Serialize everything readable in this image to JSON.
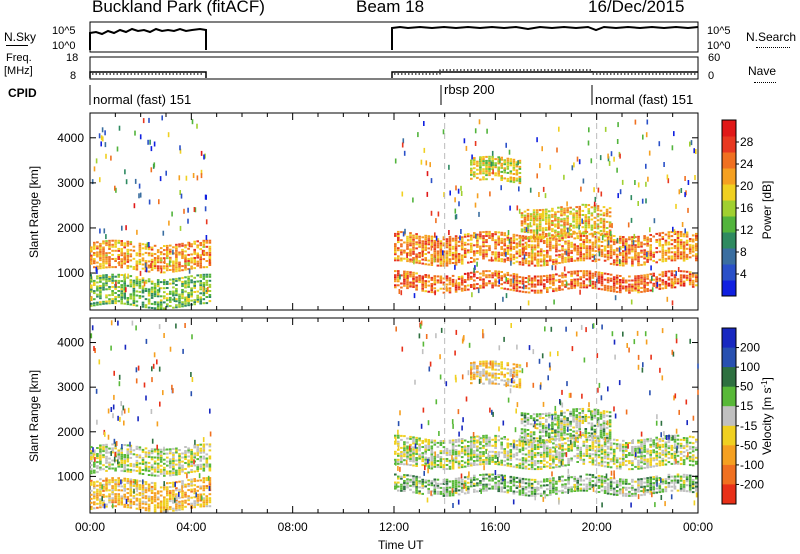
{
  "header": {
    "station": "Buckland Park (fitACF)",
    "beam": "Beam 18",
    "date": "16/Dec/2015"
  },
  "side_labels": {
    "nsky": "N.Sky",
    "nsky_ticks": [
      "10^5",
      "10^0"
    ],
    "nsearch": "N.Search",
    "nsearch_ticks": [
      "10^5",
      "10^0"
    ],
    "freq_line1": "Freq.",
    "freq_line2": "[MHz]",
    "freq_ticks": [
      "18",
      "8"
    ],
    "nave": "Nave",
    "nave_ticks": [
      "60",
      "0"
    ],
    "cpid": "CPID"
  },
  "cpid_modes": [
    {
      "label": "normal (fast) 151",
      "start_hour": 0.0
    },
    {
      "label": "rbsp 200",
      "start_hour": 14.0
    },
    {
      "label": "normal (fast) 151",
      "start_hour": 20.0
    }
  ],
  "chart_data": [
    {
      "type": "heatmap",
      "panel": "power",
      "ylabel": "Slant Range [km]",
      "xlabel": "",
      "x_range_hours": [
        0,
        24
      ],
      "ylim": [
        180,
        4550
      ],
      "yticks": [
        1000,
        2000,
        3000,
        4000
      ],
      "colorbar": {
        "label": "Power [dB]",
        "tick_labels": [
          "4",
          "8",
          "12",
          "16",
          "20",
          "24",
          "28"
        ],
        "range": [
          0,
          32
        ],
        "colors": [
          "#1020e0",
          "#2a50c8",
          "#3a6ea0",
          "#2e8a60",
          "#52b43c",
          "#a0d030",
          "#f0d020",
          "#f5a020",
          "#f07020",
          "#e83820",
          "#e01818"
        ]
      },
      "data_gaps_hours": [
        [
          4.75,
          12.0
        ]
      ],
      "dashed_lines_hours": [
        14.0,
        20.0
      ],
      "bands": [
        {
          "start_hour": 0,
          "end_hour": 4.75,
          "range_km": [
            1050,
            1650
          ],
          "power_db": 22
        },
        {
          "start_hour": 0,
          "end_hour": 4.75,
          "range_km": [
            250,
            900
          ],
          "power_db": 14
        },
        {
          "start_hour": 12,
          "end_hour": 24,
          "range_km": [
            1200,
            1850
          ],
          "power_db": 23
        },
        {
          "start_hour": 12,
          "end_hour": 24,
          "range_km": [
            600,
            1000
          ],
          "power_db": 25
        },
        {
          "start_hour": 17,
          "end_hour": 20.5,
          "range_km": [
            1800,
            2450
          ],
          "power_db": 20
        },
        {
          "start_hour": 15,
          "end_hour": 17,
          "range_km": [
            3000,
            3500
          ],
          "power_db": 18
        }
      ]
    },
    {
      "type": "heatmap",
      "panel": "velocity",
      "ylabel": "Slant Range [km]",
      "xlabel": "Time UT",
      "x_range_hours": [
        0,
        24
      ],
      "x_tick_labels": [
        "00:00",
        "04:00",
        "08:00",
        "12:00",
        "16:00",
        "20:00",
        "00:00"
      ],
      "ylim": [
        180,
        4550
      ],
      "yticks": [
        1000,
        2000,
        3000,
        4000
      ],
      "colorbar": {
        "label": "Velocity [m s^-1]",
        "tick_labels": [
          "200",
          "100",
          "50",
          "15",
          "-15",
          "-50",
          "-100",
          "-200"
        ],
        "colors": [
          "#1828c0",
          "#2850b0",
          "#2e7040",
          "#58b838",
          "#c0c0c0",
          "#f0d020",
          "#f5a020",
          "#f07020",
          "#e83018"
        ]
      },
      "data_gaps_hours": [
        [
          4.75,
          12.0
        ]
      ],
      "dashed_lines_hours": [
        14.0,
        20.0
      ],
      "bands": [
        {
          "start_hour": 0,
          "end_hour": 4.75,
          "range_km": [
            1050,
            1650
          ],
          "velocity": 0
        },
        {
          "start_hour": 0,
          "end_hour": 4.75,
          "range_km": [
            250,
            900
          ],
          "velocity": -60
        },
        {
          "start_hour": 12,
          "end_hour": 24,
          "range_km": [
            1200,
            1850
          ],
          "velocity": 0
        },
        {
          "start_hour": 12,
          "end_hour": 24,
          "range_km": [
            600,
            1000
          ],
          "velocity": 30
        },
        {
          "start_hour": 17,
          "end_hour": 20.5,
          "range_km": [
            1800,
            2450
          ],
          "velocity": 20
        },
        {
          "start_hour": 15,
          "end_hour": 17,
          "range_km": [
            3000,
            3500
          ],
          "velocity": -40
        }
      ]
    }
  ]
}
